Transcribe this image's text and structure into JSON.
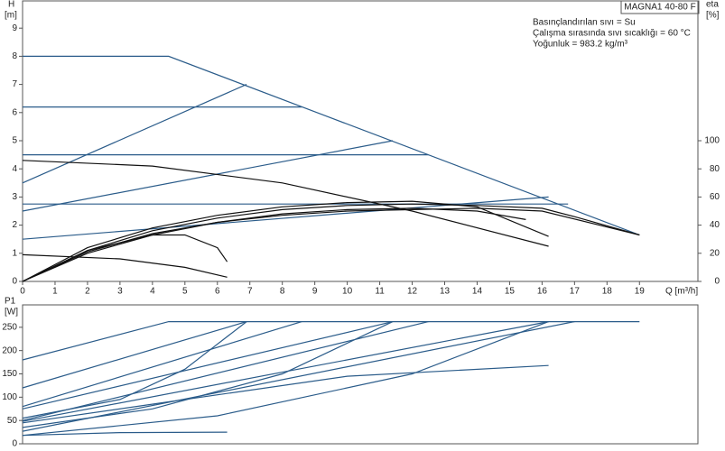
{
  "chart_data": [
    {
      "type": "line",
      "title": "MAGNA1 40-80 F",
      "annotations": [
        "Basınçlandırılan sıvı = Su",
        "Çalışma sırasında sıvı sıcaklığı = 60 °C",
        "Yoğunluk = 983.2 kg/m³"
      ],
      "y_label": "H",
      "y_unit": "[m]",
      "y2_label": "eta",
      "y2_unit": "[%]",
      "x_label": "Q [m³/h]",
      "xlim": [
        0,
        20.8
      ],
      "ylim": [
        0,
        10
      ],
      "y2lim": [
        0,
        200
      ],
      "xticks": [
        0,
        1,
        2,
        3,
        4,
        5,
        6,
        7,
        8,
        9,
        10,
        11,
        12,
        13,
        14,
        15,
        16,
        17,
        18,
        19
      ],
      "yticks": [
        0,
        1,
        2,
        3,
        4,
        5,
        6,
        7,
        8,
        9
      ],
      "y2ticks": [
        0,
        20,
        40,
        60,
        80,
        100
      ],
      "series": [
        {
          "color": "#2b5c8a",
          "x": [
            0,
            4.5,
            19
          ],
          "values": [
            8,
            8,
            1.65
          ]
        },
        {
          "color": "#2b5c8a",
          "x": [
            0,
            8.6
          ],
          "values": [
            6.2,
            6.2
          ]
        },
        {
          "color": "#2b5c8a",
          "x": [
            0,
            12.5
          ],
          "values": [
            4.5,
            4.5
          ]
        },
        {
          "color": "#2b5c8a",
          "x": [
            0,
            16.8
          ],
          "values": [
            2.75,
            2.75
          ]
        },
        {
          "color": "#2b5c8a",
          "x": [
            0,
            6.9
          ],
          "values": [
            3.5,
            7
          ]
        },
        {
          "color": "#2b5c8a",
          "x": [
            0,
            11.4
          ],
          "values": [
            2.5,
            5
          ]
        },
        {
          "color": "#2b5c8a",
          "x": [
            0,
            16.2
          ],
          "values": [
            1.5,
            3
          ]
        },
        {
          "color": "#111111",
          "x": [
            0,
            4,
            8,
            12,
            16.2
          ],
          "values": [
            4.3,
            4.1,
            3.5,
            2.5,
            1.25
          ]
        },
        {
          "color": "#111111",
          "x": [
            0,
            3,
            5,
            6.3
          ],
          "values": [
            0.95,
            0.8,
            0.5,
            0.15
          ]
        },
        {
          "color": "#111111",
          "axis": "y2",
          "x": [
            0,
            2,
            4,
            5,
            6,
            6.3
          ],
          "values": [
            0,
            22,
            33,
            33,
            24,
            14
          ]
        },
        {
          "color": "#111111",
          "axis": "y2",
          "x": [
            0,
            2,
            4,
            6,
            8,
            10,
            12,
            14,
            16.2
          ],
          "values": [
            0,
            24,
            38,
            47,
            53,
            56,
            57,
            53,
            32
          ]
        },
        {
          "color": "#111111",
          "axis": "y2",
          "x": [
            0,
            2,
            4,
            6,
            8,
            10,
            12,
            14,
            16,
            17,
            19
          ],
          "values": [
            0,
            22,
            36,
            45,
            51,
            54,
            55,
            54,
            52,
            46,
            33
          ]
        },
        {
          "color": "#111111",
          "axis": "y2",
          "x": [
            0,
            2,
            4,
            6,
            8,
            10,
            12,
            14,
            15.5
          ],
          "values": [
            0,
            20,
            33,
            42,
            48,
            51,
            52,
            50,
            44
          ]
        },
        {
          "color": "#111111",
          "axis": "y2",
          "x": [
            0,
            2,
            4,
            6,
            8,
            10,
            12,
            14,
            16,
            19
          ],
          "values": [
            0,
            21,
            34,
            42,
            47,
            50,
            51,
            52,
            50,
            33
          ]
        }
      ]
    },
    {
      "type": "line",
      "y_label": "P1",
      "y_unit": "[W]",
      "xlim": [
        0,
        20.8
      ],
      "ylim": [
        0,
        300
      ],
      "yticks": [
        0,
        50,
        100,
        150,
        200,
        250
      ],
      "series": [
        {
          "color": "#2b5c8a",
          "x": [
            0,
            4.5,
            19
          ],
          "values": [
            180,
            262,
            262
          ]
        },
        {
          "color": "#2b5c8a",
          "x": [
            0,
            6.9
          ],
          "values": [
            120,
            262
          ]
        },
        {
          "color": "#2b5c8a",
          "x": [
            0,
            8.6
          ],
          "values": [
            80,
            262
          ]
        },
        {
          "color": "#2b5c8a",
          "x": [
            0,
            11.4
          ],
          "values": [
            75,
            262
          ]
        },
        {
          "color": "#2b5c8a",
          "x": [
            0,
            12.5
          ],
          "values": [
            50,
            262
          ]
        },
        {
          "color": "#2b5c8a",
          "x": [
            0,
            16.2
          ],
          "values": [
            48,
            262
          ]
        },
        {
          "color": "#2b5c8a",
          "x": [
            0,
            17
          ],
          "values": [
            27,
            262
          ]
        },
        {
          "color": "#2b5c8a",
          "x": [
            0,
            3,
            5,
            6.9
          ],
          "values": [
            55,
            95,
            160,
            262
          ]
        },
        {
          "color": "#2b5c8a",
          "x": [
            0,
            4,
            8,
            11.4
          ],
          "values": [
            35,
            75,
            150,
            262
          ]
        },
        {
          "color": "#2b5c8a",
          "x": [
            0,
            6,
            12,
            16.2
          ],
          "values": [
            18,
            60,
            150,
            262
          ]
        },
        {
          "color": "#2b5c8a",
          "x": [
            0,
            3,
            6.3
          ],
          "values": [
            18,
            24,
            25
          ]
        },
        {
          "color": "#2b5c8a",
          "x": [
            0,
            5,
            10,
            16.2
          ],
          "values": [
            45,
            95,
            145,
            168
          ]
        }
      ]
    }
  ]
}
